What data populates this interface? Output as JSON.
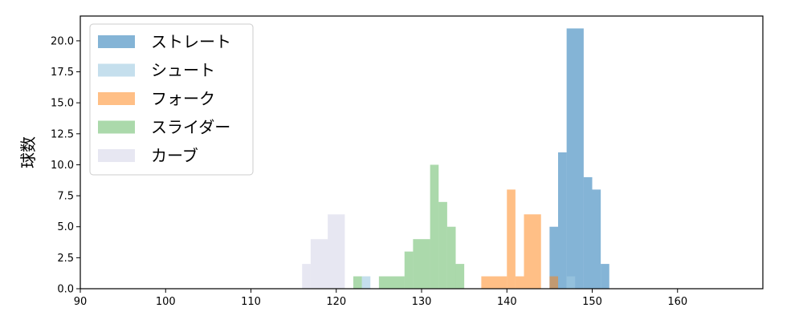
{
  "chart_data": {
    "type": "bar",
    "ylabel": "球数",
    "xlabel": "",
    "title": "",
    "xlim": [
      90,
      170
    ],
    "ylim": [
      0,
      22
    ],
    "xticks": [
      90,
      100,
      110,
      120,
      130,
      140,
      150,
      160
    ],
    "xtick_labels": [
      "90",
      "100",
      "110",
      "120",
      "130",
      "140",
      "150",
      "160"
    ],
    "yticks": [
      0,
      2.5,
      5,
      7.5,
      10,
      12.5,
      15,
      17.5,
      20
    ],
    "ytick_labels": [
      "0.0",
      "2.5",
      "5.0",
      "7.5",
      "10.0",
      "12.5",
      "15.0",
      "17.5",
      "20.0"
    ],
    "grid": false,
    "legend_position": "top-left",
    "series": [
      {
        "name": "ストレート",
        "color": "#1f77b4",
        "opacity": 0.55,
        "bins": [
          {
            "x0": 145.0,
            "x1": 146.0,
            "count": 5
          },
          {
            "x0": 146.0,
            "x1": 147.0,
            "count": 11
          },
          {
            "x0": 147.0,
            "x1": 149.0,
            "count": 21
          },
          {
            "x0": 149.0,
            "x1": 150.0,
            "count": 9
          },
          {
            "x0": 150.0,
            "x1": 151.0,
            "count": 8
          },
          {
            "x0": 151.0,
            "x1": 152.0,
            "count": 2
          }
        ]
      },
      {
        "name": "シュート",
        "color": "#9ecae1",
        "opacity": 0.6,
        "bins": [
          {
            "x0": 123.0,
            "x1": 124.0,
            "count": 1
          },
          {
            "x0": 147.0,
            "x1": 148.0,
            "count": 1
          }
        ]
      },
      {
        "name": "フォーク",
        "color": "#ff7f0e",
        "opacity": 0.5,
        "bins": [
          {
            "x0": 137.0,
            "x1": 140.0,
            "count": 1
          },
          {
            "x0": 140.0,
            "x1": 141.0,
            "count": 8
          },
          {
            "x0": 141.0,
            "x1": 142.0,
            "count": 1
          },
          {
            "x0": 142.0,
            "x1": 144.0,
            "count": 6
          },
          {
            "x0": 145.0,
            "x1": 146.0,
            "count": 1
          }
        ]
      },
      {
        "name": "スライダー",
        "color": "#2ca02c",
        "opacity": 0.4,
        "bins": [
          {
            "x0": 122.0,
            "x1": 123.0,
            "count": 1
          },
          {
            "x0": 125.0,
            "x1": 128.0,
            "count": 1
          },
          {
            "x0": 128.0,
            "x1": 129.0,
            "count": 3
          },
          {
            "x0": 129.0,
            "x1": 131.0,
            "count": 4
          },
          {
            "x0": 131.0,
            "x1": 132.0,
            "count": 10
          },
          {
            "x0": 132.0,
            "x1": 133.0,
            "count": 7
          },
          {
            "x0": 133.0,
            "x1": 134.0,
            "count": 5
          },
          {
            "x0": 134.0,
            "x1": 135.0,
            "count": 2
          }
        ]
      },
      {
        "name": "カーブ",
        "color": "#dadaeb",
        "opacity": 0.65,
        "bins": [
          {
            "x0": 116.0,
            "x1": 117.0,
            "count": 2
          },
          {
            "x0": 117.0,
            "x1": 119.0,
            "count": 4
          },
          {
            "x0": 119.0,
            "x1": 121.0,
            "count": 6
          }
        ]
      }
    ]
  }
}
